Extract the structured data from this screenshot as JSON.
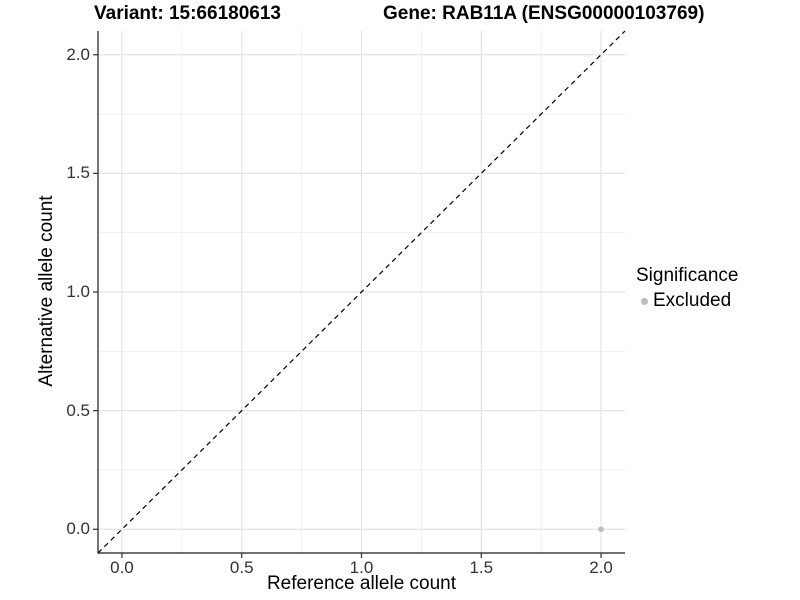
{
  "header": {
    "variant_title": "Variant: 15:66180613",
    "gene_title": "Gene: RAB11A (ENSG00000103769)"
  },
  "axes": {
    "x_title": "Reference allele count",
    "y_title": "Alternative allele count"
  },
  "legend": {
    "title": "Significance",
    "items": [
      {
        "label": "Excluded",
        "color": "#bdbdbd",
        "marker": "circle"
      }
    ]
  },
  "chart_data": {
    "type": "scatter",
    "title": "Variant: 15:66180613 | Gene: RAB11A (ENSG00000103769)",
    "xlabel": "Reference allele count",
    "ylabel": "Alternative allele count",
    "xlim": [
      -0.1,
      2.1
    ],
    "ylim": [
      -0.1,
      2.1
    ],
    "x_major_ticks": [
      0,
      0.5,
      1,
      1.5,
      2
    ],
    "y_major_ticks": [
      0,
      0.5,
      1,
      1.5,
      2
    ],
    "x_minor_ticks": [
      0.25,
      0.75,
      1.25,
      1.75
    ],
    "y_minor_ticks": [
      0.25,
      0.75,
      1.25,
      1.75
    ],
    "tick_label_decimals": 1,
    "grid": "major+minor",
    "legend_position": "right",
    "reference_line": {
      "slope": 1,
      "intercept": 0,
      "style": "dashed",
      "color": "#000000"
    },
    "series": [
      {
        "name": "Excluded",
        "color": "#bdbdbd",
        "points": [
          {
            "x": 2.0,
            "y": 0.0
          }
        ]
      }
    ]
  },
  "colors": {
    "background": "#ffffff",
    "panel_background": "#ffffff",
    "grid_major": "#e4e4e4",
    "grid_minor": "#f1f1f1",
    "axis_line": "#1a1a1a",
    "tick_mark": "#333333",
    "tick_label": "#333333",
    "point": "#bdbdbd"
  }
}
